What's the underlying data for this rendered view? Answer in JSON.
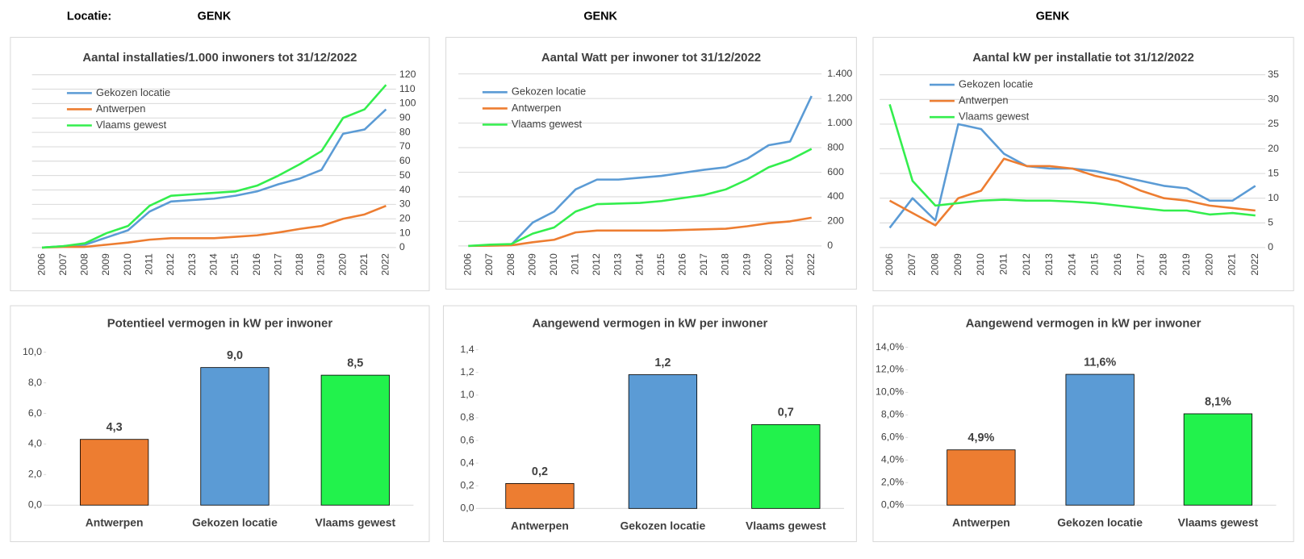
{
  "header": {
    "label": "Locatie:",
    "locations": [
      "GENK",
      "GENK",
      "GENK"
    ]
  },
  "chart_data": [
    {
      "type": "line",
      "title": "Aantal installaties/1.000  inwoners tot 31/12/2022",
      "categories": [
        "2006",
        "2007",
        "2008",
        "2009",
        "2010",
        "2011",
        "2012",
        "2013",
        "2014",
        "2015",
        "2016",
        "2017",
        "2018",
        "2019",
        "2020",
        "2021",
        "2022"
      ],
      "series": [
        {
          "name": "Gekozen locatie",
          "color": "#5b9bd5",
          "values": [
            0,
            1,
            2,
            7,
            12,
            25,
            32,
            33,
            34,
            36,
            39,
            44,
            48,
            54,
            79,
            82,
            96
          ]
        },
        {
          "name": "Antwerpen",
          "color": "#ed7d31",
          "values": [
            0,
            0.5,
            0.5,
            2,
            3.5,
            5.5,
            6.5,
            6.5,
            6.5,
            7.5,
            8.5,
            10.5,
            13,
            15,
            20,
            23,
            29
          ]
        },
        {
          "name": "Vlaams gewest",
          "color": "#33ee4d",
          "values": [
            0,
            1,
            3,
            10,
            15,
            29,
            36,
            37,
            38,
            39,
            43,
            50,
            58,
            67,
            90,
            96,
            113
          ]
        }
      ],
      "ylim": [
        0,
        120
      ],
      "yticks": [
        0,
        10,
        20,
        30,
        40,
        50,
        60,
        70,
        80,
        90,
        100,
        110,
        120
      ],
      "yaxis_side": "right",
      "grid": true,
      "legend": "top-left"
    },
    {
      "type": "line",
      "title": "Aantal Watt per inwoner  tot 31/12/2022",
      "categories": [
        "2006",
        "2007",
        "2008",
        "2009",
        "2010",
        "2011",
        "2012",
        "2013",
        "2014",
        "2015",
        "2016",
        "2017",
        "2018",
        "2019",
        "2020",
        "2021",
        "2022"
      ],
      "series": [
        {
          "name": "Gekozen locatie",
          "color": "#5b9bd5",
          "values": [
            0,
            5,
            10,
            190,
            280,
            460,
            540,
            540,
            555,
            570,
            595,
            620,
            640,
            710,
            820,
            850,
            1220
          ]
        },
        {
          "name": "Antwerpen",
          "color": "#ed7d31",
          "values": [
            0,
            2,
            5,
            30,
            50,
            110,
            125,
            125,
            125,
            125,
            130,
            135,
            140,
            160,
            185,
            200,
            230
          ]
        },
        {
          "name": "Vlaams gewest",
          "color": "#33ee4d",
          "values": [
            0,
            10,
            15,
            100,
            150,
            280,
            340,
            345,
            350,
            365,
            390,
            415,
            460,
            540,
            640,
            700,
            790
          ]
        }
      ],
      "ylim": [
        0,
        1400
      ],
      "yticks": [
        0,
        200,
        400,
        600,
        800,
        {
          "value": 1000,
          "label": "1.000"
        },
        {
          "value": 1200,
          "label": "1.200"
        },
        {
          "value": 1400,
          "label": "1.400"
        }
      ],
      "yaxis_side": "right",
      "grid": true,
      "legend": "top-left"
    },
    {
      "type": "line",
      "title": "Aantal kW per installatie  tot 31/12/2022",
      "categories": [
        "2006",
        "2007",
        "2008",
        "2009",
        "2010",
        "2011",
        "2012",
        "2013",
        "2014",
        "2015",
        "2016",
        "2017",
        "2018",
        "2019",
        "2020",
        "2021",
        "2022"
      ],
      "series": [
        {
          "name": "Gekozen locatie",
          "color": "#5b9bd5",
          "values": [
            4,
            10,
            5.5,
            25,
            24,
            19,
            16.5,
            16,
            16,
            15.5,
            14.5,
            13.5,
            12.5,
            12,
            9.5,
            9.5,
            12.5
          ]
        },
        {
          "name": "Antwerpen",
          "color": "#ed7d31",
          "values": [
            9.5,
            7,
            4.5,
            10,
            11.5,
            18,
            16.5,
            16.5,
            16,
            14.5,
            13.5,
            11.5,
            10,
            9.5,
            8.5,
            8,
            7.5
          ]
        },
        {
          "name": "Vlaams gewest",
          "color": "#33ee4d",
          "values": [
            29,
            13.5,
            8.5,
            9,
            9.5,
            9.7,
            9.5,
            9.5,
            9.3,
            9,
            8.5,
            8,
            7.5,
            7.5,
            6.7,
            7,
            6.5
          ]
        }
      ],
      "ylim": [
        0,
        35
      ],
      "yticks": [
        0,
        5,
        10,
        15,
        20,
        25,
        30,
        35
      ],
      "yaxis_side": "right",
      "grid": true,
      "legend": "top-left"
    },
    {
      "type": "bar",
      "title": "Potentieel vermogen in kW per inwoner",
      "categories": [
        "Antwerpen",
        "Gekozen locatie",
        "Vlaams gewest"
      ],
      "values": [
        4.3,
        9.0,
        8.5
      ],
      "value_labels": [
        "4,3",
        "9,0",
        "8,5"
      ],
      "colors": [
        "#ed7d31",
        "#5b9bd5",
        "#22f24c"
      ],
      "ylim": [
        0,
        10
      ],
      "yticks": [
        {
          "value": 0,
          "label": "0,0"
        },
        {
          "value": 2,
          "label": "2,0"
        },
        {
          "value": 4,
          "label": "4,0"
        },
        {
          "value": 6,
          "label": "6,0"
        },
        {
          "value": 8,
          "label": "8,0"
        },
        {
          "value": 10,
          "label": "10,0"
        }
      ],
      "yaxis_side": "left",
      "grid": false
    },
    {
      "type": "bar",
      "title": "Aangewend vermogen in kW per inwoner",
      "categories": [
        "Antwerpen",
        "Gekozen locatie",
        "Vlaams gewest"
      ],
      "values": [
        0.22,
        1.18,
        0.74
      ],
      "value_labels": [
        "0,2",
        "1,2",
        "0,7"
      ],
      "colors": [
        "#ed7d31",
        "#5b9bd5",
        "#22f24c"
      ],
      "ylim": [
        0,
        1.4
      ],
      "yticks": [
        {
          "value": 0,
          "label": "0,0"
        },
        {
          "value": 0.2,
          "label": "0,2"
        },
        {
          "value": 0.4,
          "label": "0,4"
        },
        {
          "value": 0.6,
          "label": "0,6"
        },
        {
          "value": 0.8,
          "label": "0,8"
        },
        {
          "value": 1,
          "label": "1,0"
        },
        {
          "value": 1.2,
          "label": "1,2"
        },
        {
          "value": 1.4,
          "label": "1,4"
        }
      ],
      "yaxis_side": "left",
      "grid": false
    },
    {
      "type": "bar",
      "title": "Aangewend vermogen in kW per inwoner",
      "categories": [
        "Antwerpen",
        "Gekozen locatie",
        "Vlaams gewest"
      ],
      "values": [
        4.9,
        11.6,
        8.1
      ],
      "value_labels": [
        "4,9%",
        "11,6%",
        "8,1%"
      ],
      "colors": [
        "#ed7d31",
        "#5b9bd5",
        "#22f24c"
      ],
      "ylim": [
        0,
        14
      ],
      "yticks": [
        {
          "value": 0,
          "label": "0,0%"
        },
        {
          "value": 2,
          "label": "2,0%"
        },
        {
          "value": 4,
          "label": "4,0%"
        },
        {
          "value": 6,
          "label": "6,0%"
        },
        {
          "value": 8,
          "label": "8,0%"
        },
        {
          "value": 10,
          "label": "10,0%"
        },
        {
          "value": 12,
          "label": "12,0%"
        },
        {
          "value": 14,
          "label": "14,0%"
        }
      ],
      "yaxis_side": "left",
      "grid": false
    }
  ]
}
